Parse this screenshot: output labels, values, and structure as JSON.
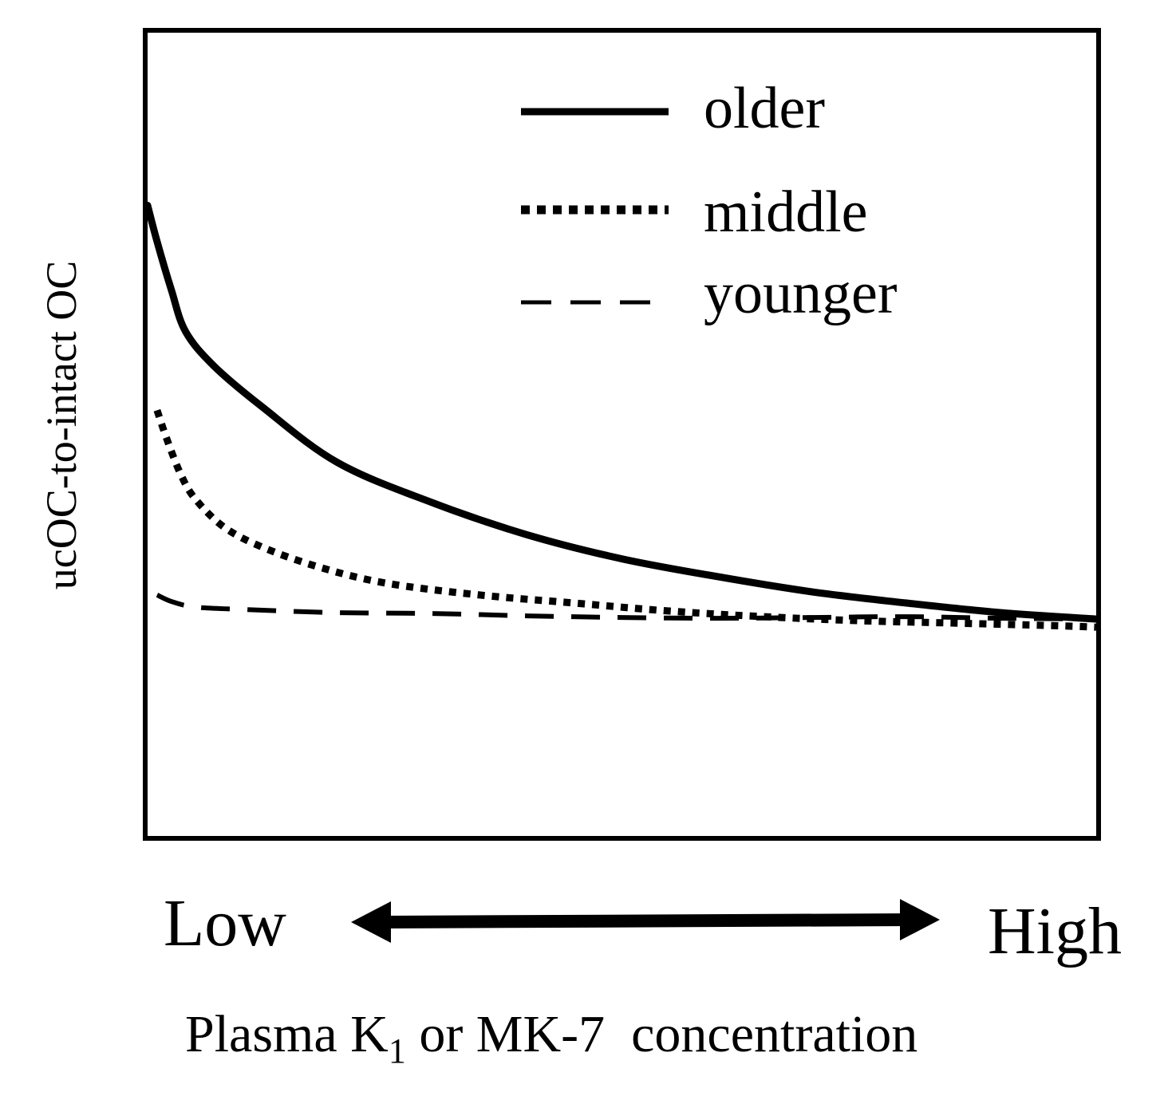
{
  "chart_data": {
    "type": "line",
    "title": "",
    "ylabel": "ucOC-to-intact OC",
    "xlabel": {
      "prefix": "Plasma K",
      "subscript": "1",
      "suffix": " or MK-7  concentration"
    },
    "x_axis_labels": {
      "low": "Low",
      "high": "High"
    },
    "xlim": [
      0,
      1
    ],
    "ylim": [
      0,
      1
    ],
    "grid": false,
    "legend_position": "top-right",
    "series": [
      {
        "name": "older",
        "style": "solid",
        "x": [
          0.0,
          0.01,
          0.025,
          0.04,
          0.07,
          0.12,
          0.2,
          0.3,
          0.4,
          0.5,
          0.6,
          0.7,
          0.8,
          0.9,
          1.0
        ],
        "y": [
          0.785,
          0.74,
          0.68,
          0.628,
          0.585,
          0.535,
          0.465,
          0.415,
          0.375,
          0.345,
          0.323,
          0.304,
          0.29,
          0.278,
          0.27
        ]
      },
      {
        "name": "middle",
        "style": "dotted",
        "x": [
          0.01,
          0.02,
          0.035,
          0.05,
          0.08,
          0.12,
          0.18,
          0.25,
          0.35,
          0.45,
          0.55,
          0.65,
          0.75,
          0.85,
          0.95,
          1.0
        ],
        "y": [
          0.53,
          0.495,
          0.45,
          0.42,
          0.385,
          0.36,
          0.335,
          0.315,
          0.3,
          0.29,
          0.28,
          0.273,
          0.268,
          0.265,
          0.262,
          0.26
        ]
      },
      {
        "name": "younger",
        "style": "dashed",
        "x": [
          0.01,
          0.025,
          0.05,
          0.1,
          0.2,
          0.3,
          0.4,
          0.5,
          0.6,
          0.7,
          0.8,
          0.9,
          1.0
        ],
        "y": [
          0.3,
          0.292,
          0.285,
          0.282,
          0.278,
          0.277,
          0.274,
          0.272,
          0.271,
          0.272,
          0.273,
          0.271,
          0.27
        ]
      }
    ],
    "colors": {
      "line": "#000000",
      "background": "#ffffff"
    }
  }
}
